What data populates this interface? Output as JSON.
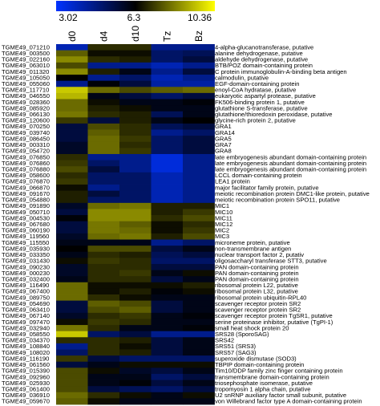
{
  "chart_data": {
    "type": "heatmap",
    "title": "",
    "colorbar": {
      "min_label": "3.02",
      "mid_label": "6.3",
      "max_label": "10.36",
      "min": 3.02,
      "mid": 6.3,
      "max": 10.36,
      "colors": [
        "#0033ff",
        "#000000",
        "#ffff00"
      ]
    },
    "columns": [
      "d0",
      "d4",
      "d10",
      "Tz",
      "Bz"
    ],
    "rows": [
      {
        "id": "TGME49_071210",
        "desc": "4-alpha-glucanotransferase, putative",
        "values": [
          4.0,
          7.0,
          7.0,
          4.5,
          4.5
        ]
      },
      {
        "id": "TGME49_003500",
        "desc": "alanine dehydrogenase, putative",
        "values": [
          7.8,
          6.5,
          6.5,
          5.0,
          5.2
        ]
      },
      {
        "id": "TGME49_022160",
        "desc": "aldehyde dehydrogenase, putative",
        "values": [
          8.5,
          7.0,
          6.8,
          5.0,
          5.5
        ]
      },
      {
        "id": "TGME49_063010",
        "desc": "BTB/POZ domain-containing protein",
        "values": [
          7.5,
          4.5,
          4.5,
          4.0,
          4.5
        ]
      },
      {
        "id": "TGME49_011320",
        "desc": "C protein immunoglobulin-A-binding beta antigen",
        "values": [
          8.5,
          6.8,
          6.0,
          4.5,
          5.5
        ]
      },
      {
        "id": "TGME49_105050",
        "desc": "calmodulin, putative",
        "values": [
          6.3,
          4.5,
          5.0,
          4.0,
          4.5
        ]
      },
      {
        "id": "TGME49_055060",
        "desc": "EGF-domain-containing protein",
        "values": [
          4.5,
          6.2,
          5.5,
          4.2,
          4.2
        ]
      },
      {
        "id": "TGME49_117710",
        "desc": "enoyl-CoA hydratase, putative",
        "values": [
          9.5,
          8.0,
          7.5,
          7.8,
          8.0
        ]
      },
      {
        "id": "TGME49_046550",
        "desc": "eukaryotic aspartyl protease, putative",
        "values": [
          9.2,
          6.0,
          5.5,
          5.0,
          5.5
        ]
      },
      {
        "id": "TGME49_028360",
        "desc": "FK506-binding protein 1, putative",
        "values": [
          8.0,
          6.5,
          6.0,
          6.0,
          6.2
        ]
      },
      {
        "id": "TGME49_085920",
        "desc": "glutathione S-transferase, putative",
        "values": [
          8.0,
          6.8,
          6.5,
          6.0,
          6.0
        ]
      },
      {
        "id": "TGME49_066130",
        "desc": "glutathione/thioredoxin peroxidase, putative",
        "values": [
          8.2,
          7.0,
          6.8,
          5.2,
          6.0
        ]
      },
      {
        "id": "TGME49_120600",
        "desc": "glycine-rich protein 2, putative",
        "values": [
          7.2,
          5.5,
          6.8,
          6.0,
          6.3
        ]
      },
      {
        "id": "TGME49_070250",
        "desc": "GRA1",
        "values": [
          5.5,
          7.5,
          7.0,
          5.2,
          5.5
        ]
      },
      {
        "id": "TGME49_039740",
        "desc": "GRA14",
        "values": [
          5.5,
          7.8,
          7.0,
          4.5,
          5.0
        ]
      },
      {
        "id": "TGME49_086450",
        "desc": "GRA5",
        "values": [
          5.5,
          8.0,
          7.2,
          5.0,
          5.5
        ]
      },
      {
        "id": "TGME49_003310",
        "desc": "GRA7",
        "values": [
          5.8,
          8.0,
          7.0,
          5.0,
          5.5
        ]
      },
      {
        "id": "TGME49_054720",
        "desc": "GRA8",
        "values": [
          5.8,
          8.0,
          7.2,
          5.0,
          5.5
        ]
      },
      {
        "id": "TGME49_076850",
        "desc": "late embryogenesis abundant domain-containing protein",
        "values": [
          7.0,
          4.5,
          4.5,
          3.5,
          4.5
        ]
      },
      {
        "id": "TGME49_076860",
        "desc": "late embryogenesis abundant domain-containing protein",
        "values": [
          7.2,
          5.0,
          4.5,
          3.5,
          4.5
        ]
      },
      {
        "id": "TGME49_076880",
        "desc": "late embryogenesis abundant domain-containing protein",
        "values": [
          7.5,
          5.5,
          4.5,
          3.5,
          4.5
        ]
      },
      {
        "id": "TGME49_058600",
        "desc": "LCCL domain-containing protein",
        "values": [
          7.0,
          5.0,
          5.0,
          4.0,
          4.5
        ]
      },
      {
        "id": "TGME49_076870",
        "desc": "LEA1 protein",
        "values": [
          7.2,
          5.0,
          5.0,
          4.0,
          4.5
        ]
      },
      {
        "id": "TGME49_066870",
        "desc": "major facilitator family protein, putative",
        "values": [
          6.5,
          4.5,
          5.0,
          4.0,
          4.5
        ]
      },
      {
        "id": "TGME49_091670",
        "desc": "meiotic recombination protein DMC1-like protein, putative",
        "values": [
          6.8,
          5.5,
          5.0,
          4.0,
          4.5
        ]
      },
      {
        "id": "TGME49_054880",
        "desc": "meiotic recombination protein SPO11, putative",
        "values": [
          6.8,
          5.0,
          5.0,
          4.0,
          4.5
        ]
      },
      {
        "id": "TGME49_091890",
        "desc": "MIC1",
        "values": [
          5.8,
          8.0,
          8.2,
          6.8,
          6.8
        ]
      },
      {
        "id": "TGME49_050710",
        "desc": "MIC10",
        "values": [
          5.5,
          8.5,
          8.5,
          6.8,
          7.2
        ]
      },
      {
        "id": "TGME49_004530",
        "desc": "MIC11",
        "values": [
          6.2,
          8.5,
          8.5,
          7.0,
          7.5
        ]
      },
      {
        "id": "TGME49_067680",
        "desc": "MIC12",
        "values": [
          5.5,
          8.2,
          7.8,
          6.5,
          7.0
        ]
      },
      {
        "id": "TGME49_060190",
        "desc": "MIC2",
        "values": [
          5.5,
          8.2,
          8.0,
          6.5,
          7.2
        ]
      },
      {
        "id": "TGME49_119560",
        "desc": "MIC3",
        "values": [
          5.8,
          8.0,
          8.2,
          6.8,
          7.5
        ]
      },
      {
        "id": "TGME49_115550",
        "desc": "microneme protein, putative",
        "values": [
          6.0,
          6.0,
          6.0,
          4.5,
          5.0
        ]
      },
      {
        "id": "TGME49_035930",
        "desc": "non-transmembrane antigen",
        "values": [
          6.3,
          7.5,
          7.5,
          5.5,
          6.0
        ]
      },
      {
        "id": "TGME49_033350",
        "desc": "nuclear transport factor 2, putativ",
        "values": [
          6.0,
          7.0,
          6.8,
          5.2,
          5.5
        ]
      },
      {
        "id": "TGME49_031430",
        "desc": "oligosaccharyl transferase STT3, putative",
        "values": [
          6.5,
          7.2,
          7.0,
          5.0,
          5.0
        ]
      },
      {
        "id": "TGME49_090230",
        "desc": "PAN domain-containing protein",
        "values": [
          5.8,
          7.0,
          7.0,
          5.5,
          5.5
        ]
      },
      {
        "id": "TGME49_000230",
        "desc": "PAN domain-containing protein",
        "values": [
          5.8,
          7.0,
          7.2,
          6.0,
          6.5
        ]
      },
      {
        "id": "TGME49_032400",
        "desc": "PAN domain-containing protein",
        "values": [
          6.0,
          7.0,
          7.0,
          5.5,
          6.0
        ]
      },
      {
        "id": "TGME49_116490",
        "desc": "ribosomal protein L22, putative",
        "values": [
          8.0,
          6.5,
          6.5,
          6.5,
          6.8
        ]
      },
      {
        "id": "TGME49_067400",
        "desc": "ribosomal protein L32, putative",
        "values": [
          8.0,
          6.5,
          6.8,
          6.2,
          6.5
        ]
      },
      {
        "id": "TGME49_089750",
        "desc": "ribosomal protein ubiquitin-RPL40",
        "values": [
          8.0,
          7.0,
          6.5,
          6.0,
          6.0
        ]
      },
      {
        "id": "TGME49_054690",
        "desc": "scavenger receptor protein SR2",
        "values": [
          5.5,
          7.8,
          7.5,
          5.5,
          6.0
        ]
      },
      {
        "id": "TGME49_063410",
        "desc": "scavenger receptor protein SR2",
        "values": [
          5.5,
          7.5,
          7.8,
          5.5,
          6.0
        ]
      },
      {
        "id": "TGME49_067140",
        "desc": "scavenger receptor protein TgSR1, putative",
        "values": [
          5.8,
          7.0,
          7.2,
          6.0,
          6.2
        ]
      },
      {
        "id": "TGME49_097470",
        "desc": "serine proteinase inhibitor, putative (TgPI-1)",
        "values": [
          6.5,
          7.2,
          7.0,
          6.0,
          6.0
        ]
      },
      {
        "id": "TGME49_032940",
        "desc": "small heat shock protein 20",
        "values": [
          8.2,
          7.0,
          6.0,
          6.0,
          6.2
        ]
      },
      {
        "id": "TGME49_058550",
        "desc": "SRS28 (SporoSAG)",
        "values": [
          9.5,
          5.0,
          5.5,
          4.5,
          4.5
        ]
      },
      {
        "id": "TGME49_034370",
        "desc": "SRS42",
        "values": [
          7.0,
          7.0,
          6.8,
          5.5,
          6.0
        ]
      },
      {
        "id": "TGME49_108840",
        "desc": "SRS51 (SRS3)",
        "values": [
          4.5,
          7.0,
          6.5,
          5.5,
          6.0
        ]
      },
      {
        "id": "TGME49_108020",
        "desc": "SRS57 (SAG3)",
        "values": [
          5.0,
          7.0,
          6.8,
          5.5,
          6.0
        ]
      },
      {
        "id": "TGME49_116190",
        "desc": "superoxide dismutase (SOD3)",
        "values": [
          7.2,
          5.5,
          5.0,
          5.0,
          5.0
        ]
      },
      {
        "id": "TGME49_061560",
        "desc": "TBPIP domain-containing protein",
        "values": [
          5.5,
          6.0,
          6.5,
          6.5,
          6.5
        ]
      },
      {
        "id": "TGME49_015390",
        "desc": "Tim10/DDP family zinc finger containing protein",
        "values": [
          7.5,
          6.5,
          5.8,
          5.5,
          6.0
        ]
      },
      {
        "id": "TGME49_092960",
        "desc": "transmembrane domain-containing protein",
        "values": [
          7.5,
          6.0,
          6.0,
          5.0,
          5.5
        ]
      },
      {
        "id": "TGME49_025930",
        "desc": "triosephosphate isomerase, putative",
        "values": [
          7.5,
          6.0,
          6.2,
          5.5,
          6.0
        ]
      },
      {
        "id": "TGME49_061400",
        "desc": "tropomyosin 1 alpha chain, putative",
        "values": [
          7.5,
          5.5,
          5.2,
          5.0,
          5.5
        ]
      },
      {
        "id": "TGME49_036910",
        "desc": "U2 snRNP auxiliary factor small subunit, putative",
        "values": [
          8.0,
          7.0,
          6.5,
          6.0,
          6.5
        ]
      },
      {
        "id": "TGME49_059670",
        "desc": "von Willebrand factor type A domain-containing protein",
        "values": [
          7.8,
          6.5,
          6.0,
          6.0,
          6.0
        ]
      }
    ]
  }
}
